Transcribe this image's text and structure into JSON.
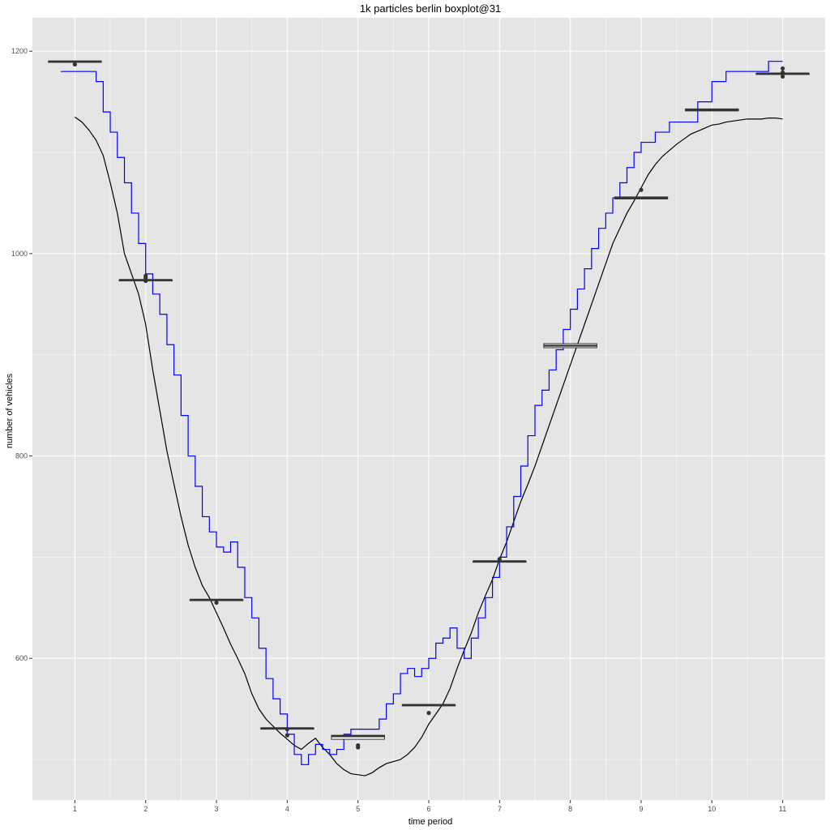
{
  "chart_data": {
    "type": "boxplot+line",
    "title": "1k particles berlin boxplot@31",
    "xlabel": "time period",
    "ylabel": "number of vehicles",
    "xlim": [
      0.4,
      11.6
    ],
    "ylim": [
      460,
      1233
    ],
    "x_ticks": [
      1,
      2,
      3,
      4,
      5,
      6,
      7,
      8,
      9,
      10,
      11
    ],
    "y_ticks": [
      600,
      800,
      1000,
      1200
    ],
    "grid": true,
    "legend": "none",
    "colors": {
      "panel": "#e5e5e5",
      "grid": "#ffffff",
      "blue_line": "#0000ff",
      "black_line": "#000000",
      "box": "#333333",
      "box_fill": "#ffffff"
    },
    "boxes": [
      {
        "x": 1,
        "median": 1190,
        "q1": 1189,
        "q3": 1190,
        "outliers": [
          1187
        ]
      },
      {
        "x": 2,
        "median": 974,
        "q1": 973,
        "q3": 974,
        "outliers": [
          978,
          976,
          973
        ]
      },
      {
        "x": 3,
        "median": 658,
        "q1": 657,
        "q3": 658,
        "outliers": [
          655
        ]
      },
      {
        "x": 4,
        "median": 531,
        "q1": 530,
        "q3": 531,
        "outliers": [
          530,
          524
        ]
      },
      {
        "x": 5,
        "median": 523,
        "q1": 520,
        "q3": 524,
        "outliers": [
          514,
          512
        ]
      },
      {
        "x": 6,
        "median": 554,
        "q1": 553,
        "q3": 554,
        "outliers": [
          546
        ]
      },
      {
        "x": 7,
        "median": 696,
        "q1": 695,
        "q3": 696,
        "outliers": [
          698
        ]
      },
      {
        "x": 8,
        "median": 909,
        "q1": 907,
        "q3": 911,
        "outliers": []
      },
      {
        "x": 9,
        "median": 1055,
        "q1": 1054,
        "q3": 1056,
        "outliers": [
          1063
        ]
      },
      {
        "x": 10,
        "median": 1142,
        "q1": 1141,
        "q3": 1143,
        "outliers": []
      },
      {
        "x": 11,
        "median": 1178,
        "q1": 1177,
        "q3": 1178,
        "outliers": [
          1183,
          1179,
          1175
        ]
      }
    ],
    "series": [
      {
        "color": "#000000",
        "x": [
          1,
          1.1,
          1.2,
          1.3,
          1.4,
          1.5,
          1.6,
          1.7,
          1.8,
          1.9,
          2,
          2.1,
          2.2,
          2.3,
          2.4,
          2.5,
          2.6,
          2.7,
          2.8,
          2.9,
          3,
          3.1,
          3.2,
          3.3,
          3.4,
          3.5,
          3.6,
          3.7,
          3.8,
          3.9,
          4,
          4.1,
          4.2,
          4.3,
          4.4,
          4.5,
          4.6,
          4.7,
          4.8,
          4.9,
          5,
          5.1,
          5.2,
          5.3,
          5.4,
          5.5,
          5.6,
          5.7,
          5.8,
          5.9,
          6,
          6.1,
          6.2,
          6.3,
          6.4,
          6.5,
          6.6,
          6.7,
          6.8,
          6.9,
          7,
          7.1,
          7.2,
          7.3,
          7.4,
          7.5,
          7.6,
          7.7,
          7.8,
          7.9,
          8,
          8.1,
          8.2,
          8.3,
          8.4,
          8.5,
          8.6,
          8.7,
          8.8,
          8.9,
          9,
          9.1,
          9.2,
          9.3,
          9.4,
          9.5,
          9.6,
          9.7,
          9.8,
          9.9,
          10,
          10.1,
          10.2,
          10.3,
          10.4,
          10.5,
          10.6,
          10.7,
          10.8,
          10.9,
          11
        ],
        "y": [
          1135,
          1130,
          1122,
          1112,
          1097,
          1070,
          1040,
          1000,
          980,
          960,
          930,
          885,
          845,
          805,
          772,
          740,
          712,
          690,
          672,
          660,
          645,
          630,
          614,
          600,
          585,
          565,
          550,
          540,
          533,
          526,
          520,
          514,
          510,
          516,
          521,
          512,
          505,
          496,
          490,
          486,
          485,
          484,
          487,
          492,
          496,
          498,
          500,
          505,
          512,
          522,
          535,
          545,
          555,
          570,
          590,
          608,
          625,
          645,
          662,
          678,
          698,
          715,
          735,
          755,
          772,
          790,
          810,
          830,
          850,
          870,
          890,
          910,
          930,
          950,
          970,
          990,
          1010,
          1025,
          1040,
          1052,
          1065,
          1078,
          1088,
          1096,
          1102,
          1108,
          1113,
          1118,
          1121,
          1124,
          1127,
          1128,
          1130,
          1131,
          1132,
          1133,
          1133,
          1133,
          1134,
          1134,
          1133
        ]
      },
      {
        "color": "#0000ff",
        "x": [
          0.8,
          1.1,
          1.3,
          1.4,
          1.5,
          1.6,
          1.7,
          1.8,
          1.9,
          2.0,
          2.1,
          2.2,
          2.3,
          2.4,
          2.5,
          2.6,
          2.7,
          2.8,
          2.9,
          3.0,
          3.1,
          3.2,
          3.3,
          3.4,
          3.5,
          3.6,
          3.7,
          3.8,
          3.9,
          4.0,
          4.1,
          4.2,
          4.3,
          4.4,
          4.5,
          4.6,
          4.7,
          4.8,
          4.9,
          5.0,
          5.1,
          5.2,
          5.3,
          5.4,
          5.5,
          5.6,
          5.7,
          5.8,
          5.9,
          6.0,
          6.1,
          6.2,
          6.3,
          6.4,
          6.5,
          6.6,
          6.7,
          6.8,
          6.9,
          7.0,
          7.1,
          7.2,
          7.3,
          7.4,
          7.5,
          7.6,
          7.7,
          7.8,
          7.9,
          8.0,
          8.1,
          8.2,
          8.3,
          8.4,
          8.5,
          8.6,
          8.7,
          8.8,
          8.9,
          9.0,
          9.2,
          9.4,
          9.6,
          9.8,
          10.0,
          10.2,
          10.4,
          10.6,
          10.8,
          11.0
        ],
        "y": [
          1180,
          1180,
          1170,
          1140,
          1120,
          1095,
          1070,
          1040,
          1010,
          980,
          960,
          940,
          910,
          880,
          840,
          800,
          770,
          740,
          725,
          710,
          705,
          715,
          690,
          660,
          640,
          610,
          580,
          560,
          545,
          525,
          505,
          495,
          505,
          515,
          510,
          505,
          510,
          525,
          530,
          530,
          530,
          530,
          540,
          555,
          565,
          585,
          590,
          582,
          590,
          600,
          615,
          620,
          630,
          610,
          600,
          620,
          640,
          660,
          680,
          700,
          730,
          760,
          790,
          820,
          850,
          865,
          885,
          905,
          925,
          945,
          965,
          985,
          1005,
          1025,
          1040,
          1055,
          1070,
          1085,
          1100,
          1110,
          1120,
          1130,
          1130,
          1150,
          1170,
          1180,
          1180,
          1180,
          1190,
          1190
        ]
      }
    ]
  }
}
